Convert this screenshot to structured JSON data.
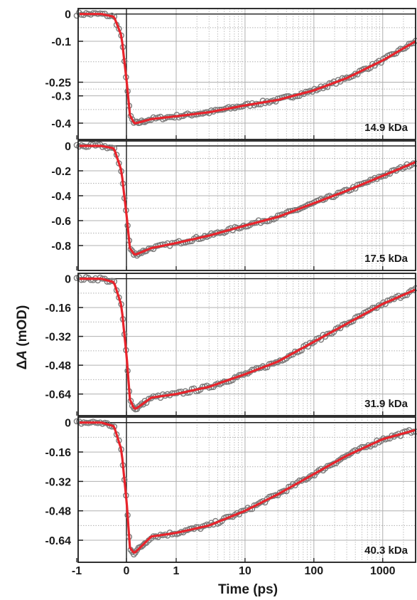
{
  "figure": {
    "xlabel": "Time (ps)",
    "ylabel_prefix": "ΔA",
    "ylabel_italic": "A",
    "ylabel_delta": "Δ",
    "ylabel_unit": " (mOD)",
    "colors": {
      "data_marker": "#7a7a7a",
      "fit_line": "#e8232b",
      "axis": "#1a1a1a",
      "grid": "#b0b0b0"
    }
  },
  "chart_data": {
    "type": "scatter",
    "x_scale": "linear from -1 to 1 ps, logarithmic above 1 ps",
    "xlim": [
      -1,
      3000
    ],
    "xticks": [
      -1,
      0,
      1,
      10,
      100,
      1000
    ],
    "xtick_labels": [
      "-1",
      "0",
      "1",
      "10",
      "100",
      "1000"
    ],
    "grid": true,
    "panels": [
      {
        "label": "14.9 kDa",
        "ylim": [
          -0.46,
          0.02
        ],
        "yticks": [
          0,
          -0.1,
          -0.25,
          -0.3,
          -0.4
        ],
        "ytick_labels": [
          "0",
          "-0.1",
          "-0.25",
          "-0.3",
          "-0.4"
        ],
        "series": [
          {
            "name": "",
            "kind": "fit",
            "x": [
              -1,
              -0.5,
              -0.25,
              -0.1,
              0,
              0.07,
              0.15,
              0.2,
              0.5,
              1,
              3,
              10,
              30,
              100,
              300,
              1000,
              3000
            ],
            "y": [
              0,
              0,
              -0.01,
              -0.08,
              -0.24,
              -0.37,
              -0.4,
              -0.4,
              -0.385,
              -0.375,
              -0.36,
              -0.335,
              -0.315,
              -0.28,
              -0.235,
              -0.17,
              -0.1
            ]
          }
        ]
      },
      {
        "label": "17.5 kDa",
        "ylim": [
          -1.0,
          0.04
        ],
        "yticks": [
          0,
          -0.2,
          -0.4,
          -0.6,
          -0.8
        ],
        "ytick_labels": [
          "0",
          "-0.2",
          "-0.4",
          "-0.6",
          "-0.8"
        ],
        "series": [
          {
            "name": "",
            "kind": "fit",
            "x": [
              -1,
              -0.5,
              -0.25,
              -0.1,
              0,
              0.07,
              0.15,
              0.2,
              0.5,
              1,
              3,
              10,
              30,
              100,
              300,
              1000,
              3000
            ],
            "y": [
              0,
              0,
              -0.02,
              -0.2,
              -0.55,
              -0.82,
              -0.87,
              -0.87,
              -0.82,
              -0.78,
              -0.72,
              -0.64,
              -0.57,
              -0.46,
              -0.36,
              -0.24,
              -0.13
            ]
          }
        ]
      },
      {
        "label": "31.9 kDa",
        "ylim": [
          -0.76,
          0.03
        ],
        "yticks": [
          0,
          -0.16,
          -0.32,
          -0.48,
          -0.64
        ],
        "ytick_labels": [
          "0",
          "-0.16",
          "-0.32",
          "-0.48",
          "-0.64"
        ],
        "series": [
          {
            "name": "",
            "kind": "fit",
            "x": [
              -1,
              -0.5,
              -0.25,
              -0.1,
              0,
              0.07,
              0.15,
              0.2,
              0.5,
              1,
              3,
              10,
              30,
              100,
              300,
              1000,
              3000
            ],
            "y": [
              0,
              0,
              -0.02,
              -0.15,
              -0.42,
              -0.67,
              -0.72,
              -0.72,
              -0.66,
              -0.64,
              -0.6,
              -0.53,
              -0.46,
              -0.35,
              -0.25,
              -0.14,
              -0.06
            ]
          }
        ]
      },
      {
        "label": "40.3 kDa",
        "ylim": [
          -0.76,
          0.03
        ],
        "yticks": [
          0,
          -0.16,
          -0.32,
          -0.48,
          -0.64
        ],
        "ytick_labels": [
          "0",
          "-0.16",
          "-0.32",
          "-0.48",
          "-0.64"
        ],
        "series": [
          {
            "name": "",
            "kind": "fit",
            "x": [
              -1,
              -0.5,
              -0.25,
              -0.1,
              0,
              0.07,
              0.15,
              0.2,
              0.5,
              1,
              3,
              10,
              30,
              100,
              300,
              1000,
              3000
            ],
            "y": [
              0,
              0,
              -0.02,
              -0.15,
              -0.42,
              -0.68,
              -0.71,
              -0.7,
              -0.62,
              -0.6,
              -0.56,
              -0.48,
              -0.39,
              -0.28,
              -0.18,
              -0.09,
              -0.04
            ]
          }
        ]
      }
    ]
  }
}
